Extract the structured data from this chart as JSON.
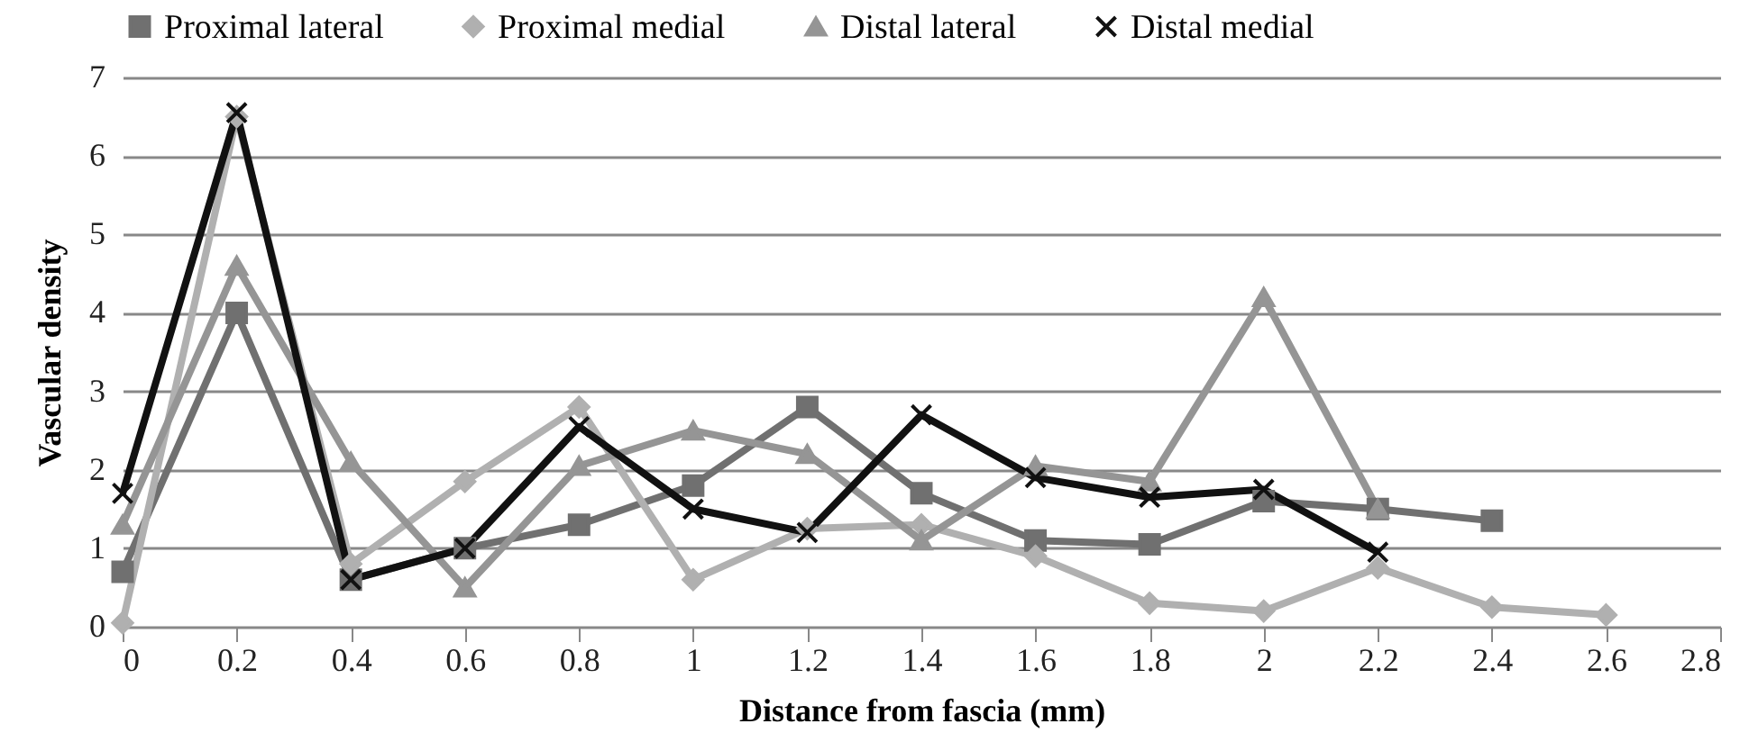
{
  "chart_data": {
    "type": "line",
    "xlabel": "Distance from fascia (mm)",
    "ylabel": "Vascular density",
    "xlim": [
      0,
      2.8
    ],
    "xticks": [
      0,
      0.2,
      0.4,
      0.6,
      0.8,
      1,
      1.2,
      1.4,
      1.6,
      1.8,
      2,
      2.2,
      2.4,
      2.6,
      2.8
    ],
    "ylim": [
      0,
      7
    ],
    "yticks": [
      0,
      1,
      2,
      3,
      4,
      5,
      6,
      7
    ],
    "grid": "y",
    "legend": "top",
    "line_style": "solid",
    "series": [
      {
        "name": "Proximal lateral",
        "color": "#707070",
        "marker": "square",
        "x": [
          0,
          0.2,
          0.4,
          0.6,
          0.8,
          1,
          1.2,
          1.4,
          1.6,
          1.8,
          2,
          2.2,
          2.4
        ],
        "values": [
          0.7,
          4.0,
          0.6,
          1.0,
          1.3,
          1.8,
          2.8,
          1.7,
          1.1,
          1.05,
          1.6,
          1.5,
          1.35
        ]
      },
      {
        "name": "Proximal medial",
        "color": "#b0b0b0",
        "marker": "diamond",
        "x": [
          0,
          0.2,
          0.4,
          0.6,
          0.8,
          1,
          1.2,
          1.4,
          1.6,
          1.8,
          2,
          2.2,
          2.4,
          2.6
        ],
        "values": [
          0.05,
          6.5,
          0.8,
          1.85,
          2.8,
          0.6,
          1.25,
          1.3,
          0.9,
          0.3,
          0.2,
          0.75,
          0.25,
          0.15
        ]
      },
      {
        "name": "Distal lateral",
        "color": "#959595",
        "marker": "triangle",
        "x": [
          0,
          0.2,
          0.4,
          0.6,
          0.8,
          1,
          1.2,
          1.4,
          1.6,
          1.8,
          2,
          2.2
        ],
        "values": [
          1.3,
          4.6,
          2.1,
          0.5,
          2.05,
          2.5,
          2.2,
          1.1,
          2.05,
          1.85,
          4.2,
          1.5
        ]
      },
      {
        "name": "Distal medial",
        "color": "#111111",
        "marker": "cross",
        "x": [
          0,
          0.2,
          0.4,
          0.6,
          0.8,
          1,
          1.2,
          1.4,
          1.6,
          1.8,
          2,
          2.2
        ],
        "values": [
          1.7,
          6.55,
          0.6,
          1.0,
          2.55,
          1.5,
          1.2,
          2.7,
          1.9,
          1.65,
          1.75,
          0.95
        ]
      }
    ]
  }
}
